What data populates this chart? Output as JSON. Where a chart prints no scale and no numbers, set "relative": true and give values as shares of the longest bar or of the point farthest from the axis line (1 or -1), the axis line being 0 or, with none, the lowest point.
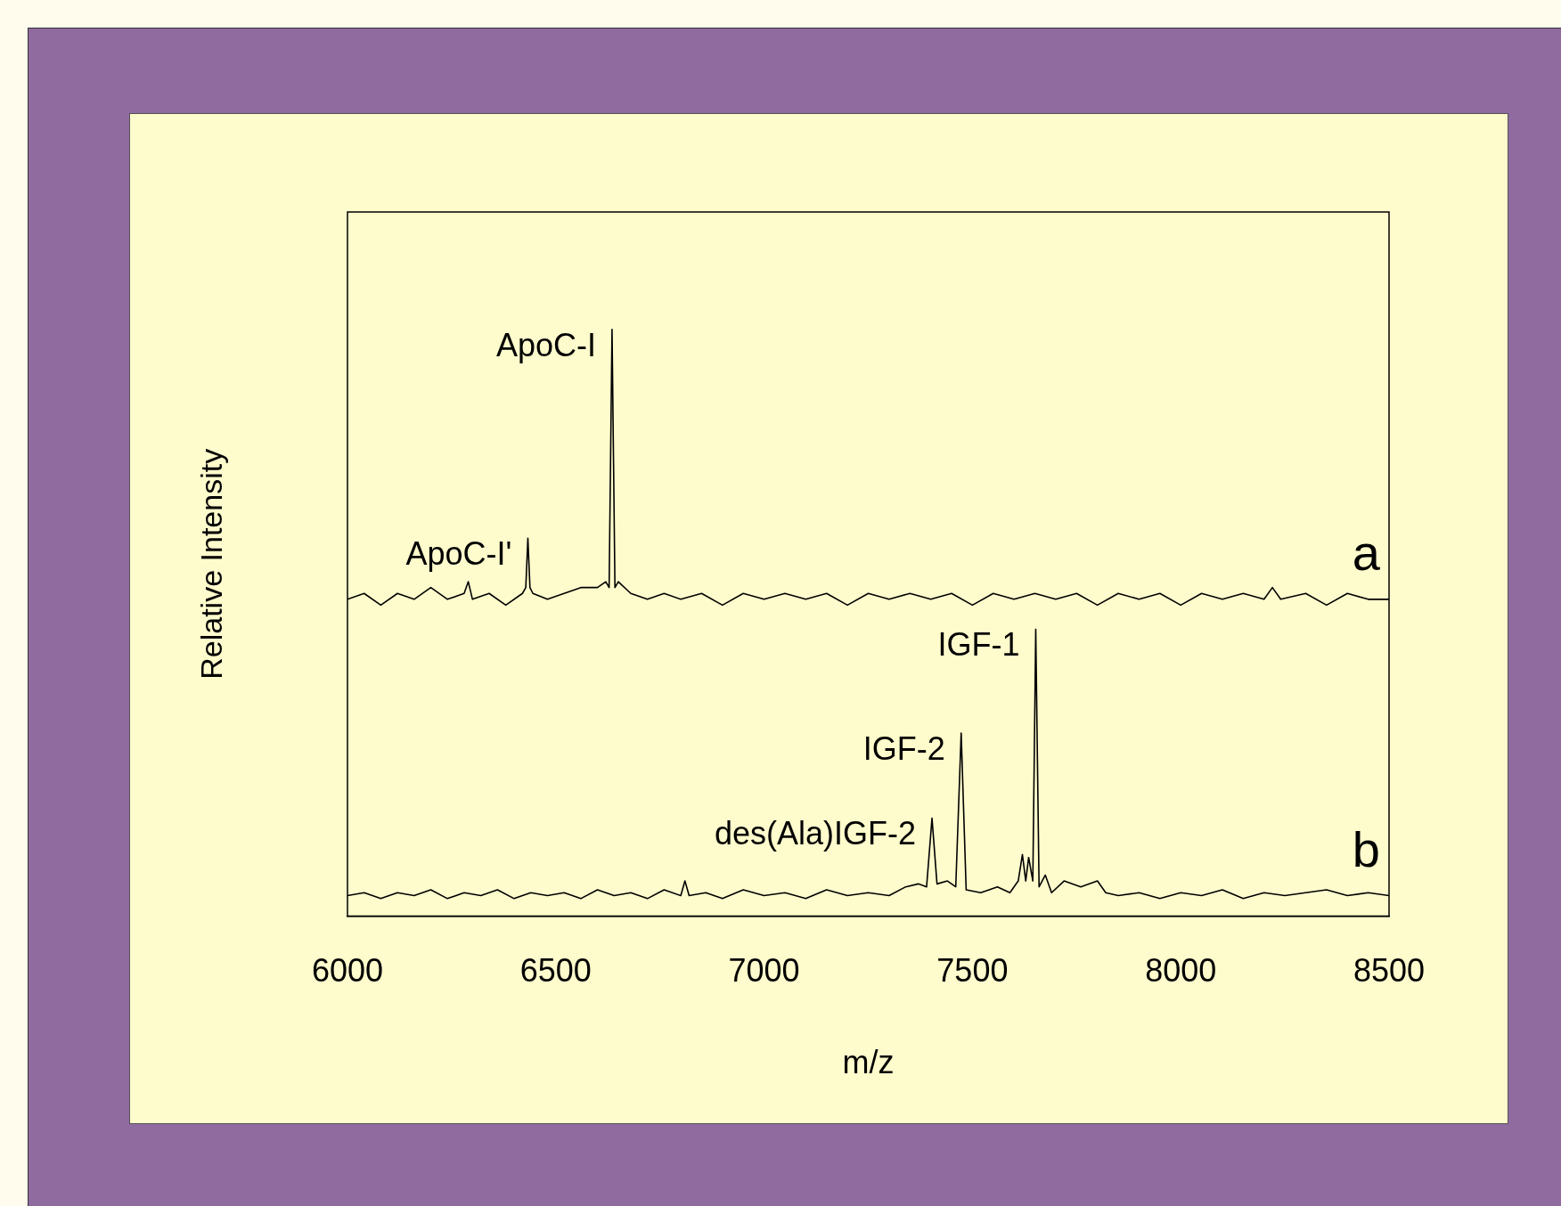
{
  "chart_data": {
    "type": "line",
    "relative": true,
    "xlabel": "m/z",
    "ylabel": "Relative Intensity",
    "xlim": [
      6000,
      8500
    ],
    "xticks": [
      6000,
      6500,
      7000,
      7500,
      8000,
      8500
    ],
    "grid": false,
    "legend": false,
    "marker": "none",
    "line_style": "solid",
    "series": [
      {
        "name": "a",
        "color": "#000000",
        "x": [
          6000,
          6040,
          6080,
          6120,
          6160,
          6200,
          6240,
          6280,
          6290,
          6300,
          6340,
          6380,
          6420,
          6428,
          6433,
          6438,
          6445,
          6480,
          6520,
          6560,
          6600,
          6620,
          6628,
          6635,
          6642,
          6650,
          6680,
          6720,
          6760,
          6800,
          6850,
          6900,
          6950,
          7000,
          7050,
          7100,
          7150,
          7200,
          7250,
          7300,
          7350,
          7400,
          7450,
          7500,
          7550,
          7600,
          7650,
          7700,
          7750,
          7800,
          7850,
          7900,
          7950,
          8000,
          8050,
          8100,
          8150,
          8200,
          8220,
          8240,
          8300,
          8350,
          8400,
          8450,
          8500
        ],
        "values": [
          0.54,
          0.55,
          0.53,
          0.55,
          0.54,
          0.56,
          0.54,
          0.55,
          0.57,
          0.54,
          0.55,
          0.53,
          0.55,
          0.56,
          0.644,
          0.56,
          0.55,
          0.54,
          0.55,
          0.56,
          0.56,
          0.57,
          0.56,
          1,
          0.56,
          0.57,
          0.55,
          0.54,
          0.55,
          0.54,
          0.55,
          0.53,
          0.55,
          0.54,
          0.55,
          0.54,
          0.55,
          0.53,
          0.55,
          0.54,
          0.55,
          0.54,
          0.55,
          0.53,
          0.55,
          0.54,
          0.55,
          0.54,
          0.55,
          0.53,
          0.55,
          0.54,
          0.55,
          0.53,
          0.55,
          0.54,
          0.55,
          0.54,
          0.56,
          0.54,
          0.55,
          0.53,
          0.55,
          0.54,
          0.54
        ]
      },
      {
        "name": "b",
        "color": "#000000",
        "x": [
          6000,
          6040,
          6080,
          6120,
          6160,
          6200,
          6240,
          6280,
          6320,
          6360,
          6400,
          6440,
          6480,
          6520,
          6560,
          6600,
          6640,
          6680,
          6720,
          6760,
          6800,
          6810,
          6820,
          6860,
          6900,
          6950,
          7000,
          7050,
          7100,
          7150,
          7200,
          7250,
          7300,
          7340,
          7370,
          7390,
          7403,
          7415,
          7440,
          7460,
          7473,
          7485,
          7520,
          7560,
          7590,
          7610,
          7620,
          7628,
          7635,
          7645,
          7652,
          7660,
          7675,
          7690,
          7720,
          7760,
          7800,
          7820,
          7850,
          7900,
          7950,
          8000,
          8050,
          8100,
          8150,
          8200,
          8250,
          8300,
          8350,
          8400,
          8450,
          8500
        ],
        "values": [
          0.035,
          0.04,
          0.03,
          0.04,
          0.035,
          0.045,
          0.03,
          0.04,
          0.035,
          0.045,
          0.03,
          0.04,
          0.035,
          0.04,
          0.03,
          0.045,
          0.035,
          0.04,
          0.03,
          0.045,
          0.035,
          0.06,
          0.035,
          0.04,
          0.03,
          0.045,
          0.035,
          0.04,
          0.03,
          0.045,
          0.035,
          0.04,
          0.035,
          0.05,
          0.055,
          0.05,
          0.167,
          0.055,
          0.06,
          0.05,
          0.312,
          0.045,
          0.04,
          0.05,
          0.04,
          0.06,
          0.105,
          0.06,
          0.1,
          0.06,
          0.489,
          0.05,
          0.07,
          0.04,
          0.06,
          0.05,
          0.06,
          0.04,
          0.035,
          0.04,
          0.03,
          0.04,
          0.035,
          0.045,
          0.03,
          0.04,
          0.035,
          0.04,
          0.045,
          0.035,
          0.04,
          0.035
        ]
      }
    ],
    "annotations": [
      {
        "text": "ApoC-I",
        "x": 6635,
        "y": 1
      },
      {
        "text": "ApoC-I'",
        "x": 6433,
        "y": 0.644
      },
      {
        "text": "IGF-1",
        "x": 7652,
        "y": 0.489
      },
      {
        "text": "IGF-2",
        "x": 7473,
        "y": 0.312
      },
      {
        "text": "des(Ala)IGF-2",
        "x": 7403,
        "y": 0.167
      }
    ]
  }
}
